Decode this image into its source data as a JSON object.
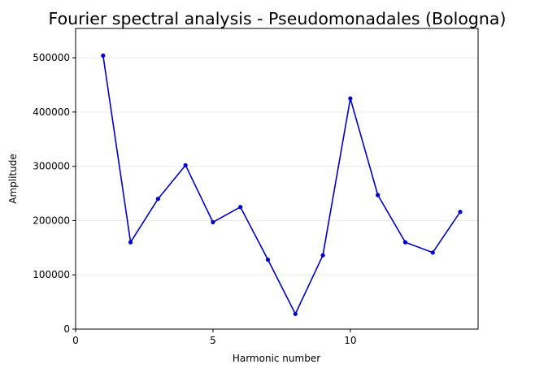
{
  "chart_data": {
    "type": "line",
    "title": "Fourier spectral analysis - Pseudomonadales (Bologna)",
    "xlabel": "Harmonic number",
    "ylabel": "Amplitude",
    "xlim": [
      0,
      14.65
    ],
    "ylim": [
      0,
      554000
    ],
    "xticks": [
      0,
      5,
      10
    ],
    "yticks": [
      0,
      100000,
      200000,
      300000,
      400000,
      500000
    ],
    "grid": "horizontal",
    "series": [
      {
        "color": "#0000cc",
        "x": [
          1,
          2,
          3,
          4,
          5,
          6,
          7,
          8,
          9,
          10,
          11,
          12,
          13,
          14
        ],
        "y": [
          504000,
          160000,
          240000,
          302000,
          197000,
          225000,
          128000,
          28000,
          136000,
          425000,
          247000,
          160000,
          141000,
          216000
        ]
      }
    ]
  }
}
